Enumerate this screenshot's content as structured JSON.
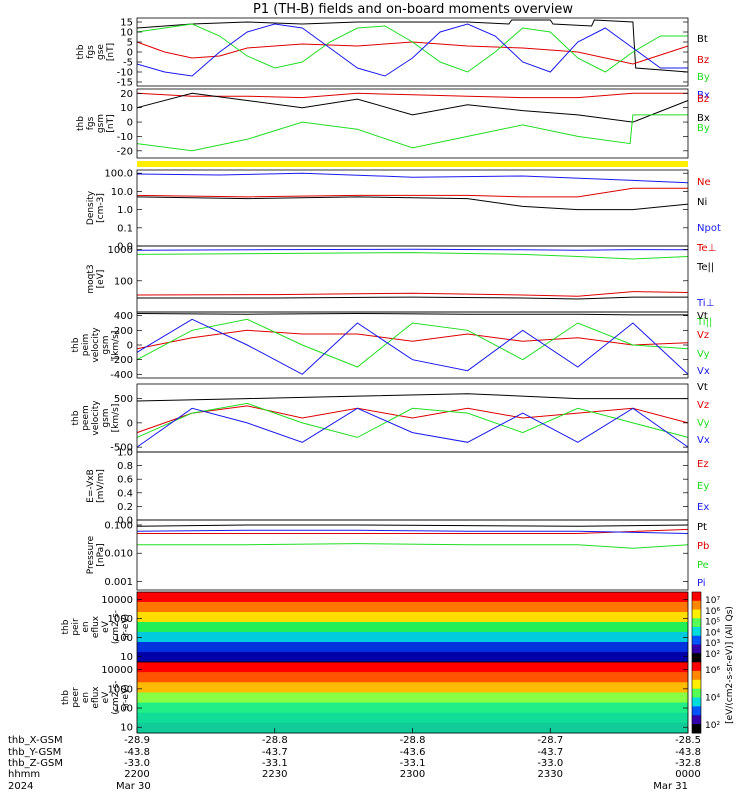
{
  "title": "P1 (TH-B) fields and on-board moments overview",
  "colors": {
    "black": "#000000",
    "red": "#dd0000",
    "green": "#22dd22",
    "blue": "#1a1aee",
    "yellow": "#ffee00"
  },
  "chart_data": [
    {
      "type": "line",
      "panel": "fgs_gse",
      "ylabel_lines": [
        "thb",
        "fgs",
        "gse",
        "[nT]"
      ],
      "ylim": [
        -17,
        17
      ],
      "ticks": [
        "15",
        "10",
        "5",
        "0",
        "-5",
        "-10",
        "-15"
      ],
      "tick_values": [
        15,
        10,
        5,
        0,
        -5,
        -10,
        -15
      ],
      "series": [
        {
          "name": "Bt",
          "color": "black",
          "x": [
            0,
            20,
            40,
            60,
            80,
            100,
            120,
            135,
            136,
            150,
            151,
            165,
            166,
            180,
            181,
            200
          ],
          "y": [
            12,
            14,
            15,
            14,
            15,
            15,
            15,
            14,
            16,
            16,
            14,
            13,
            16,
            15,
            -8,
            -10
          ]
        },
        {
          "name": "Bz",
          "color": "red",
          "x": [
            0,
            10,
            20,
            30,
            40,
            60,
            80,
            100,
            120,
            140,
            160,
            180,
            200
          ],
          "y": [
            5,
            0,
            -3,
            -2,
            2,
            4,
            3,
            5,
            3,
            2,
            0,
            -6,
            3
          ]
        },
        {
          "name": "By",
          "color": "green",
          "x": [
            0,
            10,
            20,
            30,
            40,
            50,
            60,
            70,
            80,
            90,
            100,
            110,
            120,
            130,
            140,
            150,
            160,
            170,
            180,
            190,
            200
          ],
          "y": [
            10,
            12,
            14,
            8,
            -2,
            -8,
            -5,
            5,
            12,
            13,
            5,
            -5,
            -10,
            0,
            12,
            10,
            -3,
            -10,
            0,
            8,
            8
          ]
        },
        {
          "name": "Bx",
          "color": "blue",
          "x": [
            0,
            10,
            20,
            30,
            40,
            50,
            60,
            70,
            80,
            90,
            100,
            110,
            120,
            130,
            140,
            150,
            160,
            170,
            180,
            190,
            200
          ],
          "y": [
            -6,
            -10,
            -12,
            0,
            10,
            14,
            12,
            2,
            -8,
            -12,
            -3,
            10,
            14,
            8,
            -5,
            -10,
            5,
            12,
            2,
            -8,
            -8
          ]
        }
      ]
    },
    {
      "type": "line",
      "panel": "fgs_gsm",
      "ylabel_lines": [
        "thb",
        "fgs",
        "gsm",
        "[nT]"
      ],
      "ylim": [
        -25,
        23
      ],
      "ticks": [
        "20",
        "10",
        "0",
        "-10",
        "-20"
      ],
      "tick_values": [
        20,
        10,
        0,
        -10,
        -20
      ],
      "series": [
        {
          "name": "Bz",
          "color": "red",
          "x": [
            0,
            20,
            40,
            60,
            80,
            100,
            120,
            140,
            160,
            180,
            200
          ],
          "y": [
            20,
            18,
            18,
            17,
            20,
            19,
            18,
            17,
            17,
            20,
            20
          ]
        },
        {
          "name": "Bx",
          "color": "black",
          "x": [
            0,
            20,
            40,
            60,
            80,
            100,
            120,
            140,
            160,
            180,
            200
          ],
          "y": [
            10,
            20,
            15,
            10,
            16,
            5,
            12,
            8,
            5,
            0,
            15
          ]
        },
        {
          "name": "By",
          "color": "green",
          "x": [
            0,
            20,
            40,
            60,
            80,
            100,
            120,
            140,
            160,
            179,
            180,
            200
          ],
          "y": [
            -15,
            -20,
            -12,
            0,
            -5,
            -18,
            -10,
            -2,
            -10,
            -15,
            5,
            5
          ]
        }
      ]
    },
    {
      "type": "line",
      "panel": "density",
      "ylabel_lines": [
        "Density",
        "[cm-3]"
      ],
      "scale": "log",
      "ylim": [
        0.01,
        150
      ],
      "ticks": [
        "100.0",
        "10.0",
        "1.0",
        "0.1",
        "0.0"
      ],
      "tick_values": [
        100,
        10,
        1,
        0.1,
        0.01
      ],
      "series": [
        {
          "name": "Ne",
          "color": "red",
          "x": [
            0,
            40,
            80,
            120,
            140,
            160,
            180,
            200
          ],
          "y": [
            6,
            5,
            6,
            6,
            5,
            5,
            15,
            15
          ]
        },
        {
          "name": "Ni",
          "color": "black",
          "x": [
            0,
            40,
            80,
            120,
            140,
            160,
            180,
            200
          ],
          "y": [
            5,
            4,
            5,
            4,
            1.5,
            1,
            1,
            2
          ]
        },
        {
          "name": "Npot",
          "color": "blue",
          "x": [
            0,
            30,
            60,
            100,
            140,
            180,
            200
          ],
          "y": [
            90,
            80,
            100,
            60,
            70,
            40,
            30
          ]
        }
      ]
    },
    {
      "type": "line",
      "panel": "moments_temperature",
      "ylabel_lines": [
        "moqt3",
        "[eV]"
      ],
      "scale": "log",
      "ylim": [
        10,
        1300
      ],
      "ticks": [
        "1000",
        "100"
      ],
      "tick_values": [
        1000,
        100
      ],
      "series": [
        {
          "name": "Te⊥",
          "color": "red",
          "x": [
            0,
            50,
            100,
            140,
            160,
            180,
            200
          ],
          "y": [
            35,
            36,
            40,
            35,
            32,
            45,
            42
          ]
        },
        {
          "name": "Te||",
          "color": "black",
          "x": [
            0,
            50,
            100,
            140,
            160,
            180,
            200
          ],
          "y": [
            28,
            28,
            30,
            28,
            26,
            30,
            30
          ]
        },
        {
          "name": "Ti⊥",
          "color": "blue",
          "x": [
            0,
            50,
            100,
            140,
            160,
            180,
            200
          ],
          "y": [
            950,
            1000,
            1020,
            980,
            950,
            1000,
            980
          ]
        },
        {
          "name": "Ti||",
          "color": "green",
          "x": [
            0,
            50,
            100,
            140,
            160,
            180,
            200
          ],
          "y": [
            700,
            750,
            800,
            700,
            600,
            500,
            600
          ]
        }
      ]
    },
    {
      "type": "line",
      "panel": "peim_velocity",
      "ylabel_lines": [
        "thb",
        "peim",
        "velocity",
        "gsm",
        "[km/s]"
      ],
      "ylim": [
        -450,
        450
      ],
      "ticks": [
        "400",
        "200",
        "0",
        "-200",
        "-400"
      ],
      "tick_values": [
        400,
        200,
        0,
        -200,
        -400
      ],
      "series": [
        {
          "name": "Vt",
          "color": "black",
          "x": [
            0,
            40,
            80,
            120,
            160,
            180,
            200
          ],
          "y": [
            430,
            420,
            430,
            420,
            420,
            410,
            410
          ]
        },
        {
          "name": "Vz",
          "color": "red",
          "x": [
            0,
            20,
            40,
            60,
            80,
            100,
            120,
            140,
            160,
            180,
            200
          ],
          "y": [
            -50,
            100,
            200,
            150,
            150,
            50,
            150,
            50,
            100,
            0,
            30
          ]
        },
        {
          "name": "Vy",
          "color": "green",
          "x": [
            0,
            20,
            40,
            60,
            80,
            100,
            120,
            140,
            160,
            180,
            200
          ],
          "y": [
            -200,
            200,
            350,
            0,
            -300,
            300,
            200,
            -200,
            300,
            0,
            -50
          ]
        },
        {
          "name": "Vx",
          "color": "blue",
          "x": [
            0,
            20,
            40,
            60,
            80,
            100,
            120,
            140,
            160,
            180,
            200
          ],
          "y": [
            -100,
            350,
            0,
            -400,
            300,
            -200,
            -350,
            200,
            -300,
            300,
            -400
          ]
        }
      ]
    },
    {
      "type": "line",
      "panel": "peem_velocity",
      "ylabel_lines": [
        "thb",
        "peem",
        "velocity",
        "gsm",
        "[km/s]"
      ],
      "ylim": [
        -600,
        800
      ],
      "ticks": [
        "500",
        "0",
        "-500"
      ],
      "tick_values": [
        500,
        0,
        -500
      ],
      "series": [
        {
          "name": "Vt",
          "color": "black",
          "x": [
            0,
            40,
            80,
            120,
            160,
            200
          ],
          "y": [
            450,
            500,
            550,
            600,
            500,
            500
          ]
        },
        {
          "name": "Vz",
          "color": "red",
          "x": [
            0,
            20,
            40,
            60,
            80,
            100,
            120,
            140,
            160,
            180,
            200
          ],
          "y": [
            -200,
            200,
            350,
            100,
            300,
            100,
            300,
            100,
            200,
            300,
            0
          ]
        },
        {
          "name": "Vy",
          "color": "green",
          "x": [
            0,
            20,
            40,
            60,
            80,
            100,
            120,
            140,
            160,
            180,
            200
          ],
          "y": [
            -300,
            200,
            400,
            0,
            -300,
            300,
            200,
            -200,
            300,
            0,
            -300
          ]
        },
        {
          "name": "Vx",
          "color": "blue",
          "x": [
            0,
            20,
            40,
            60,
            80,
            100,
            120,
            140,
            160,
            180,
            200
          ],
          "y": [
            -500,
            300,
            0,
            -400,
            300,
            -200,
            -400,
            200,
            -400,
            300,
            -500
          ]
        }
      ]
    },
    {
      "type": "line",
      "panel": "efield",
      "ylabel_lines": [
        "E=-VxB",
        "[mV/m]"
      ],
      "ylim": [
        0,
        1
      ],
      "ticks": [
        "1.0",
        "0.8",
        "0.6",
        "0.4",
        "0.2",
        "0.0"
      ],
      "tick_values": [
        1,
        0.8,
        0.6,
        0.4,
        0.2,
        0
      ],
      "series": [
        {
          "name": "Ez",
          "color": "red",
          "x": [],
          "y": []
        },
        {
          "name": "Ey",
          "color": "green",
          "x": [],
          "y": []
        },
        {
          "name": "Ex",
          "color": "blue",
          "x": [],
          "y": []
        }
      ]
    },
    {
      "type": "line",
      "panel": "pressure",
      "ylabel_lines": [
        "Pressure",
        "[nPa]"
      ],
      "scale": "log",
      "ylim": [
        0.0005,
        0.15
      ],
      "ticks": [
        "0.100",
        "0.010",
        "0.001"
      ],
      "tick_values": [
        0.1,
        0.01,
        0.001
      ],
      "series": [
        {
          "name": "Pt",
          "color": "black",
          "x": [
            0,
            40,
            80,
            120,
            160,
            200
          ],
          "y": [
            0.09,
            0.1,
            0.1,
            0.095,
            0.09,
            0.1
          ]
        },
        {
          "name": "Pb",
          "color": "red",
          "x": [
            0,
            40,
            80,
            120,
            160,
            200
          ],
          "y": [
            0.05,
            0.05,
            0.05,
            0.05,
            0.05,
            0.07
          ]
        },
        {
          "name": "Pe",
          "color": "green",
          "x": [
            0,
            40,
            80,
            120,
            160,
            180,
            200
          ],
          "y": [
            0.02,
            0.02,
            0.022,
            0.02,
            0.02,
            0.015,
            0.02
          ]
        },
        {
          "name": "Pi",
          "color": "blue",
          "x": [
            0,
            40,
            80,
            120,
            160,
            200
          ],
          "y": [
            0.06,
            0.065,
            0.065,
            0.06,
            0.06,
            0.05
          ]
        }
      ]
    },
    {
      "type": "heatmap",
      "panel": "peir_en_eflux",
      "ylabel_lines": [
        "thb",
        "peir",
        "en",
        "eflux",
        "eV",
        "(cm2-s-",
        "sr-eV)"
      ],
      "scale": "log",
      "ylim": [
        5,
        25000
      ],
      "ticks": [
        "10000",
        "1000",
        "100",
        "10"
      ],
      "tick_values": [
        10000,
        1000,
        100,
        10
      ],
      "colorbar_label": "[eV/(cm2-s-sr-eV)] (All Qs)",
      "colorbar_ticks": [
        "10⁷",
        "10⁶",
        "10⁵",
        "10⁴",
        "10³",
        "10²"
      ]
    },
    {
      "type": "heatmap",
      "panel": "peer_en_eflux",
      "ylabel_lines": [
        "thb",
        "peer",
        "en",
        "eflux",
        "eV",
        "(cm2-s-",
        "sr-eV)"
      ],
      "scale": "log",
      "ylim": [
        5,
        25000
      ],
      "ticks": [
        "10000",
        "1000",
        "100",
        "10"
      ],
      "tick_values": [
        10000,
        1000,
        100,
        10
      ],
      "colorbar_ticks": [
        "10⁶",
        "10⁴",
        "10²"
      ]
    }
  ],
  "time_axis": {
    "row_labels": [
      "thb_X-GSM",
      "thb_Y-GSM",
      "thb_Z-GSM",
      "hhmm",
      "2024"
    ],
    "columns": [
      {
        "x": "-28.9",
        "y": "-43.8",
        "z": "-33.0",
        "hhmm": "2200",
        "date": "Mar 30"
      },
      {
        "x": "-28.8",
        "y": "-43.7",
        "z": "-33.1",
        "hhmm": "2230",
        "date": ""
      },
      {
        "x": "-28.8",
        "y": "-43.6",
        "z": "-33.1",
        "hhmm": "2300",
        "date": ""
      },
      {
        "x": "-28.7",
        "y": "-43.7",
        "z": "-33.0",
        "hhmm": "2330",
        "date": ""
      },
      {
        "x": "-28.5",
        "y": "-43.8",
        "z": "-32.8",
        "hhmm": "0000",
        "date": "Mar 31"
      }
    ]
  }
}
